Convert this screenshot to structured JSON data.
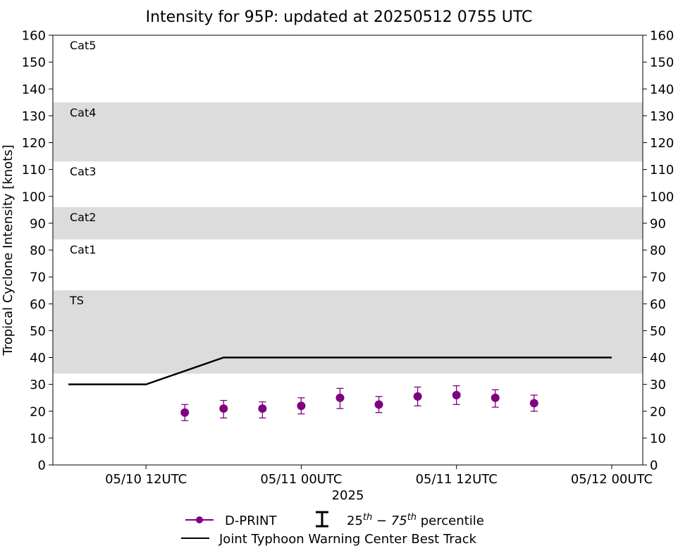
{
  "chart_data": {
    "type": "line",
    "title": "Intensity for 95P: updated at 20250512 0755 UTC",
    "xlabel": "2025",
    "ylabel": "Tropical Cyclone Intensity [knots]",
    "ylim": [
      0,
      160
    ],
    "y_ticks": [
      0,
      10,
      20,
      30,
      40,
      50,
      60,
      70,
      80,
      90,
      100,
      110,
      120,
      130,
      140,
      150,
      160
    ],
    "xlim": [
      "2025-05-10T04:48",
      "2025-05-12T02:24"
    ],
    "x_ticks": [
      {
        "x": "2025-05-10T12:00",
        "label": "05/10 12UTC"
      },
      {
        "x": "2025-05-11T00:00",
        "label": "05/11 00UTC"
      },
      {
        "x": "2025-05-11T12:00",
        "label": "05/11 12UTC"
      },
      {
        "x": "2025-05-12T00:00",
        "label": "05/12 00UTC"
      }
    ],
    "grid": false,
    "bands": [
      {
        "label": "TS",
        "from": 34,
        "to": 65,
        "shaded": true,
        "color": "#dcdcdc"
      },
      {
        "label": "Cat1",
        "from": 65,
        "to": 84,
        "shaded": false
      },
      {
        "label": "Cat2",
        "from": 84,
        "to": 96,
        "shaded": true,
        "color": "#dcdcdc"
      },
      {
        "label": "Cat3",
        "from": 96,
        "to": 113,
        "shaded": false
      },
      {
        "label": "Cat4",
        "from": 113,
        "to": 135,
        "shaded": true,
        "color": "#dcdcdc"
      },
      {
        "label": "Cat5",
        "from": 135,
        "to": 160,
        "shaded": false
      }
    ],
    "series": [
      {
        "name": "D-PRINT",
        "color": "#800080",
        "marker": "circle",
        "points": [
          {
            "x": "2025-05-10T15:00",
            "y": 19.5,
            "p25": 16.5,
            "p75": 22.5
          },
          {
            "x": "2025-05-10T18:00",
            "y": 21,
            "p25": 17.5,
            "p75": 24
          },
          {
            "x": "2025-05-10T21:00",
            "y": 21,
            "p25": 17.5,
            "p75": 23.5
          },
          {
            "x": "2025-05-11T00:00",
            "y": 22,
            "p25": 19,
            "p75": 25
          },
          {
            "x": "2025-05-11T03:00",
            "y": 25,
            "p25": 21,
            "p75": 28.5
          },
          {
            "x": "2025-05-11T06:00",
            "y": 22.5,
            "p25": 19.5,
            "p75": 25.5
          },
          {
            "x": "2025-05-11T09:00",
            "y": 25.5,
            "p25": 22,
            "p75": 29
          },
          {
            "x": "2025-05-11T12:00",
            "y": 26,
            "p25": 22.5,
            "p75": 29.5
          },
          {
            "x": "2025-05-11T15:00",
            "y": 25,
            "p25": 21.5,
            "p75": 28
          },
          {
            "x": "2025-05-11T18:00",
            "y": 23,
            "p25": 20,
            "p75": 26
          }
        ]
      },
      {
        "name": "Joint Typhoon Warning Center Best Track",
        "color": "#000000",
        "points": [
          {
            "x": "2025-05-10T06:00",
            "y": 30
          },
          {
            "x": "2025-05-10T12:00",
            "y": 30
          },
          {
            "x": "2025-05-10T18:00",
            "y": 40
          },
          {
            "x": "2025-05-12T00:00",
            "y": 40
          }
        ]
      }
    ],
    "legend": {
      "placement": "bottom-center",
      "percentile_label_prefix": "25",
      "percentile_sup_1": "th",
      "percentile_mid": " − 75",
      "percentile_sup_2": "th",
      "percentile_suffix": " percentile"
    }
  }
}
